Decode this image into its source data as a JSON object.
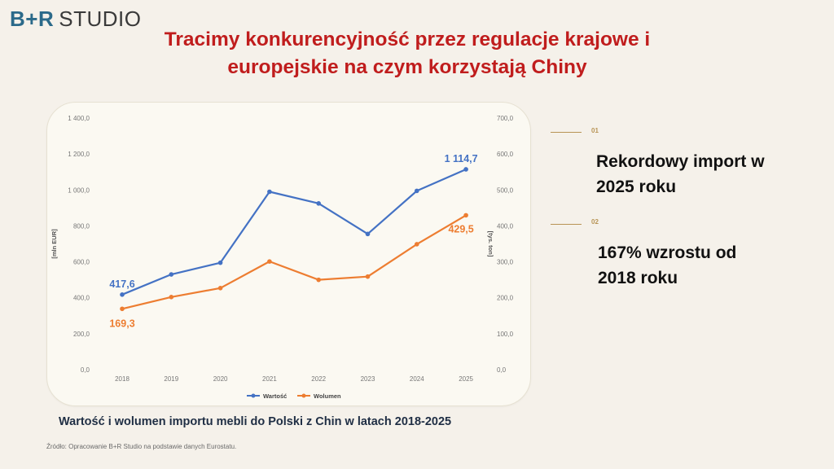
{
  "logo": {
    "brand": "B+R",
    "studio": "STUDIO"
  },
  "title": "Tracimy konkurencyjność przez regulacje krajowe i europejskie na czym korzystają Chiny",
  "callouts": [
    {
      "num": "01",
      "text": "Rekordowy import w 2025 roku"
    },
    {
      "num": "02",
      "text": "167% wzrostu od 2018 roku"
    }
  ],
  "caption": "Wartość i wolumen importu mebli do Polski z Chin w latach 2018-2025",
  "source": "Źródło: Opracowanie B+R Studio na podstawie danych Eurostatu.",
  "colors": {
    "title": "#c01d1d",
    "value_series": "#4472c4",
    "volume_series": "#ed7d31",
    "accent": "#b89455"
  },
  "chart_data": {
    "type": "line",
    "categories": [
      "2018",
      "2019",
      "2020",
      "2021",
      "2022",
      "2023",
      "2024",
      "2025"
    ],
    "series": [
      {
        "name": "Wartość",
        "axis": "left",
        "color": "#4472c4",
        "values": [
          417.6,
          530,
          595,
          990,
          925,
          755,
          995,
          1114.7
        ]
      },
      {
        "name": "Wolumen",
        "axis": "right",
        "color": "#ed7d31",
        "values": [
          169.3,
          202,
          227,
          301,
          250,
          259,
          349,
          429.5
        ]
      }
    ],
    "ylabel_left": "[mln EUR]",
    "ylabel_right": "[tys. ton]",
    "yticks_left": [
      "0,0",
      "200,0",
      "400,0",
      "600,0",
      "800,0",
      "1 000,0",
      "1 200,0",
      "1 400,0"
    ],
    "yticks_right": [
      "0,0",
      "100,0",
      "200,0",
      "300,0",
      "400,0",
      "500,0",
      "600,0",
      "700,0"
    ],
    "ylim_left": [
      0,
      1400
    ],
    "ylim_right": [
      0,
      700
    ],
    "data_labels": [
      {
        "series": 0,
        "index": 0,
        "text": "417,6"
      },
      {
        "series": 0,
        "index": 7,
        "text": "1 114,7"
      },
      {
        "series": 1,
        "index": 0,
        "text": "169,3"
      },
      {
        "series": 1,
        "index": 7,
        "text": "429,5"
      }
    ],
    "grid": false,
    "legend_position": "bottom"
  }
}
